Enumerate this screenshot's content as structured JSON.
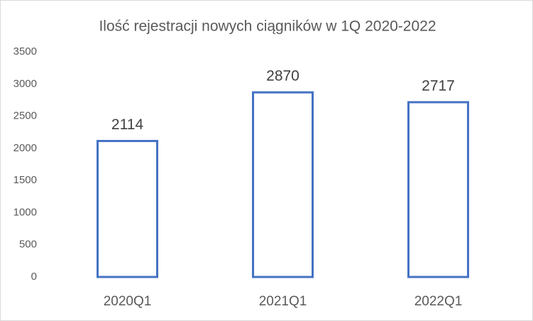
{
  "chart_data": {
    "type": "bar",
    "title": "Ilość rejestracji nowych ciągników w 1Q 2020-2022",
    "categories": [
      "2020Q1",
      "2021Q1",
      "2022Q1"
    ],
    "values": [
      2114,
      2870,
      2717
    ],
    "color": "#4472c4",
    "fill": "#ffffff",
    "ylim": [
      0,
      3500
    ],
    "yticks": [
      0,
      500,
      1000,
      1500,
      2000,
      2500,
      3000,
      3500
    ],
    "grid": false
  }
}
